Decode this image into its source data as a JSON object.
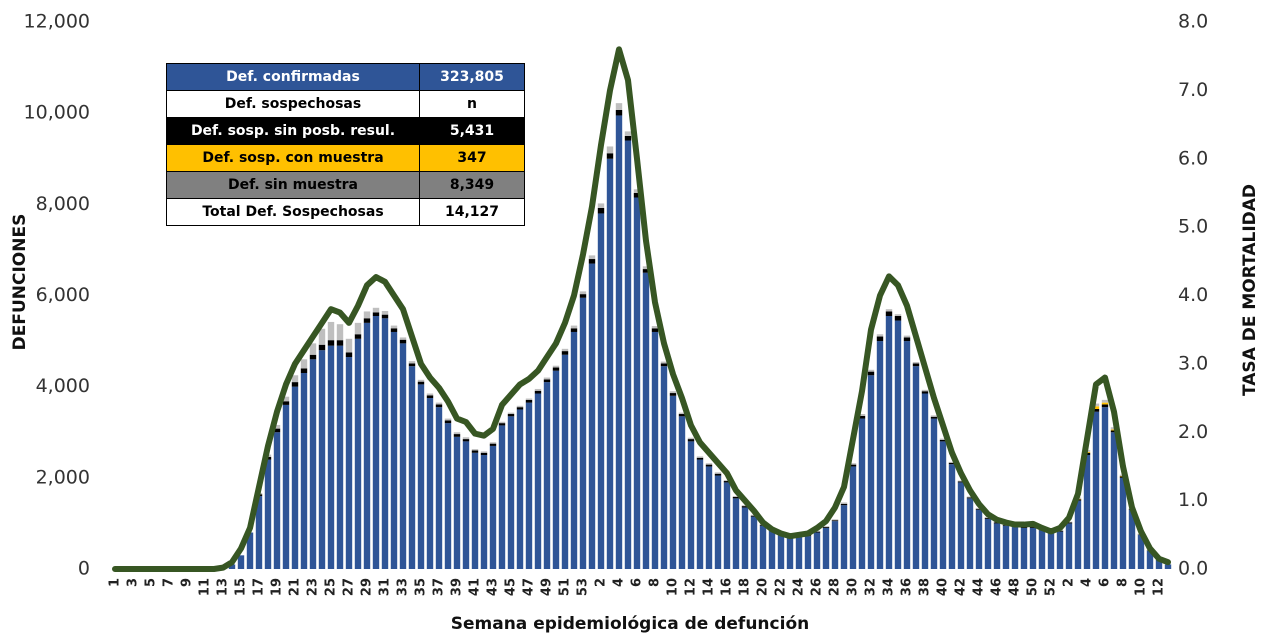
{
  "chart_data": {
    "type": "bar",
    "x_label": "Semana epidemiológica de defunción",
    "y_label": "DEFUNCIONES",
    "y2_label": "TASA DE MORTALIDAD",
    "categories": [
      "1",
      null,
      "3",
      null,
      "5",
      null,
      "7",
      null,
      "9",
      null,
      "11",
      null,
      "13",
      null,
      "15",
      null,
      "17",
      null,
      "19",
      null,
      "21",
      null,
      "23",
      null,
      "25",
      null,
      "27",
      null,
      "29",
      null,
      "31",
      null,
      "33",
      null,
      "35",
      null,
      "37",
      null,
      "39",
      null,
      "41",
      null,
      "43",
      null,
      "45",
      null,
      "47",
      null,
      "49",
      null,
      "51",
      null,
      "53",
      null,
      "2",
      null,
      "4",
      null,
      "6",
      null,
      "8",
      null,
      "10",
      null,
      "12",
      null,
      "14",
      null,
      "16",
      null,
      "18",
      null,
      "20",
      null,
      "22",
      null,
      "24",
      null,
      "26",
      null,
      "28",
      null,
      "30",
      null,
      "32",
      null,
      "34",
      null,
      "36",
      null,
      "38",
      null,
      "40",
      null,
      "42",
      null,
      "44",
      null,
      "46",
      null,
      "48",
      null,
      "50",
      null,
      "52",
      null,
      "2",
      null,
      "4",
      null,
      "6",
      null,
      "8",
      null,
      "10",
      null,
      "12",
      null
    ],
    "series": [
      {
        "color": "#2f5597",
        "values": [
          0,
          0,
          0,
          0,
          0,
          0,
          0,
          0,
          0,
          0,
          0,
          0,
          20,
          100,
          300,
          800,
          1600,
          2400,
          3000,
          3600,
          4000,
          4300,
          4600,
          4800,
          4900,
          4900,
          4650,
          5050,
          5400,
          5550,
          5500,
          5200,
          4950,
          4450,
          4050,
          3750,
          3550,
          3200,
          2900,
          2800,
          2550,
          2500,
          2700,
          3150,
          3350,
          3500,
          3650,
          3850,
          4100,
          4350,
          4700,
          5200,
          5950,
          6700,
          7800,
          9000,
          9950,
          9400,
          8150,
          6500,
          5200,
          4450,
          3800,
          3350,
          2800,
          2400,
          2250,
          2050,
          1900,
          1550,
          1350,
          1150,
          950,
          850,
          780,
          720,
          700,
          720,
          800,
          900,
          1050,
          1400,
          2250,
          3300,
          4250,
          5000,
          5550,
          5450,
          5000,
          4450,
          3850,
          3300,
          2800,
          2300,
          1900,
          1550,
          1300,
          1100,
          1000,
          950,
          920,
          900,
          900,
          850,
          800,
          820,
          1000,
          1500,
          2500,
          3450,
          3550,
          3000,
          2000,
          1300,
          750,
          400,
          200,
          100
        ]
      },
      {
        "color": "#000000",
        "values": [
          0,
          0,
          0,
          0,
          0,
          0,
          0,
          0,
          0,
          0,
          0,
          0,
          0,
          0,
          0,
          0,
          40,
          60,
          80,
          80,
          100,
          100,
          100,
          120,
          120,
          120,
          100,
          100,
          100,
          80,
          80,
          80,
          80,
          60,
          60,
          60,
          60,
          60,
          60,
          50,
          50,
          50,
          50,
          50,
          50,
          50,
          60,
          60,
          60,
          70,
          80,
          80,
          80,
          100,
          120,
          120,
          120,
          100,
          100,
          80,
          80,
          60,
          60,
          50,
          50,
          40,
          40,
          40,
          30,
          30,
          30,
          20,
          20,
          20,
          20,
          20,
          20,
          20,
          20,
          20,
          20,
          30,
          40,
          60,
          80,
          100,
          100,
          100,
          80,
          60,
          50,
          40,
          30,
          30,
          20,
          20,
          20,
          20,
          20,
          20,
          20,
          20,
          20,
          20,
          20,
          20,
          20,
          30,
          50,
          60,
          60,
          40,
          30,
          20,
          10,
          10,
          0,
          0
        ]
      },
      {
        "color": "#ffc000",
        "values": [
          0,
          0,
          0,
          0,
          0,
          0,
          0,
          0,
          0,
          0,
          0,
          0,
          0,
          0,
          0,
          0,
          0,
          0,
          0,
          0,
          0,
          0,
          0,
          0,
          0,
          0,
          0,
          0,
          0,
          0,
          0,
          0,
          0,
          0,
          0,
          0,
          0,
          0,
          0,
          0,
          0,
          0,
          0,
          0,
          0,
          0,
          0,
          0,
          0,
          0,
          0,
          0,
          0,
          0,
          0,
          0,
          0,
          0,
          0,
          0,
          0,
          0,
          0,
          0,
          0,
          0,
          0,
          0,
          0,
          0,
          0,
          0,
          0,
          0,
          0,
          0,
          0,
          0,
          0,
          0,
          0,
          0,
          0,
          0,
          0,
          0,
          0,
          0,
          0,
          0,
          0,
          0,
          0,
          0,
          0,
          0,
          0,
          0,
          0,
          0,
          0,
          0,
          0,
          0,
          0,
          0,
          0,
          10,
          20,
          60,
          40,
          20,
          10,
          0,
          0,
          0,
          0,
          0
        ]
      },
      {
        "color": "#bfbfbf",
        "values": [
          0,
          0,
          0,
          0,
          0,
          0,
          0,
          0,
          0,
          0,
          0,
          0,
          0,
          0,
          0,
          0,
          30,
          50,
          80,
          100,
          150,
          200,
          250,
          350,
          400,
          350,
          300,
          250,
          150,
          100,
          80,
          60,
          50,
          50,
          40,
          40,
          40,
          40,
          40,
          40,
          30,
          30,
          30,
          30,
          30,
          30,
          30,
          40,
          40,
          40,
          50,
          60,
          60,
          80,
          100,
          150,
          150,
          100,
          80,
          60,
          50,
          40,
          40,
          30,
          30,
          30,
          30,
          30,
          20,
          20,
          20,
          20,
          20,
          20,
          20,
          20,
          20,
          20,
          20,
          20,
          20,
          30,
          30,
          40,
          40,
          50,
          50,
          40,
          40,
          30,
          30,
          30,
          30,
          20,
          20,
          20,
          20,
          20,
          20,
          20,
          20,
          20,
          20,
          20,
          20,
          20,
          20,
          30,
          40,
          60,
          60,
          50,
          30,
          20,
          20,
          10,
          0,
          0
        ]
      },
      {
        "type": "line",
        "axis": "y2",
        "color": "#375623",
        "values": [
          0,
          0,
          0,
          0,
          0,
          0,
          0,
          0,
          0,
          0,
          0,
          0,
          0.02,
          0.1,
          0.3,
          0.6,
          1.2,
          1.8,
          2.3,
          2.7,
          3.0,
          3.2,
          3.4,
          3.6,
          3.8,
          3.75,
          3.6,
          3.85,
          4.15,
          4.27,
          4.2,
          4.0,
          3.8,
          3.4,
          3.0,
          2.8,
          2.65,
          2.45,
          2.2,
          2.15,
          1.98,
          1.95,
          2.05,
          2.4,
          2.55,
          2.7,
          2.78,
          2.9,
          3.1,
          3.3,
          3.6,
          4.0,
          4.6,
          5.3,
          6.2,
          7.0,
          7.6,
          7.15,
          6.0,
          4.8,
          3.9,
          3.3,
          2.85,
          2.5,
          2.1,
          1.85,
          1.7,
          1.55,
          1.4,
          1.15,
          1.0,
          0.85,
          0.68,
          0.58,
          0.52,
          0.48,
          0.5,
          0.52,
          0.6,
          0.7,
          0.9,
          1.2,
          1.9,
          2.6,
          3.5,
          4.0,
          4.28,
          4.15,
          3.85,
          3.4,
          2.95,
          2.5,
          2.1,
          1.7,
          1.4,
          1.15,
          0.95,
          0.8,
          0.72,
          0.68,
          0.65,
          0.65,
          0.66,
          0.6,
          0.55,
          0.6,
          0.75,
          1.1,
          1.9,
          2.7,
          2.8,
          2.3,
          1.5,
          0.9,
          0.55,
          0.3,
          0.15,
          0.1
        ]
      }
    ],
    "stacked": true,
    "ylim": [
      0,
      12000
    ],
    "yticks": [
      0,
      {
        "value": 2000,
        "label": "2,000"
      },
      {
        "value": 4000,
        "label": "4,000"
      },
      {
        "value": 6000,
        "label": "6,000"
      },
      {
        "value": 8000,
        "label": "8,000"
      },
      {
        "value": 10000,
        "label": "10,000"
      },
      {
        "value": 12000,
        "label": "12,000"
      }
    ],
    "y2lim": [
      0,
      8
    ],
    "y2ticks": [
      {
        "value": 0,
        "label": "0.0"
      },
      {
        "value": 1,
        "label": "1.0"
      },
      {
        "value": 2,
        "label": "2.0"
      },
      {
        "value": 3,
        "label": "3.0"
      },
      {
        "value": 4,
        "label": "4.0"
      },
      {
        "value": 5,
        "label": "5.0"
      },
      {
        "value": 6,
        "label": "6.0"
      },
      {
        "value": 7,
        "label": "7.0"
      },
      {
        "value": 8,
        "label": "8.0"
      }
    ],
    "grid": false
  },
  "table": {
    "rows": [
      [
        "Def. confirmadas",
        "323,805"
      ],
      [
        "Def. sospechosas",
        "n"
      ],
      [
        "Def. sosp. sin posb. resul.",
        "5,431"
      ],
      [
        "Def. sosp. con  muestra",
        "347"
      ],
      [
        "Def. sin muestra",
        "8,349"
      ],
      [
        "Total Def. Sospechosas",
        "14,127"
      ]
    ]
  }
}
